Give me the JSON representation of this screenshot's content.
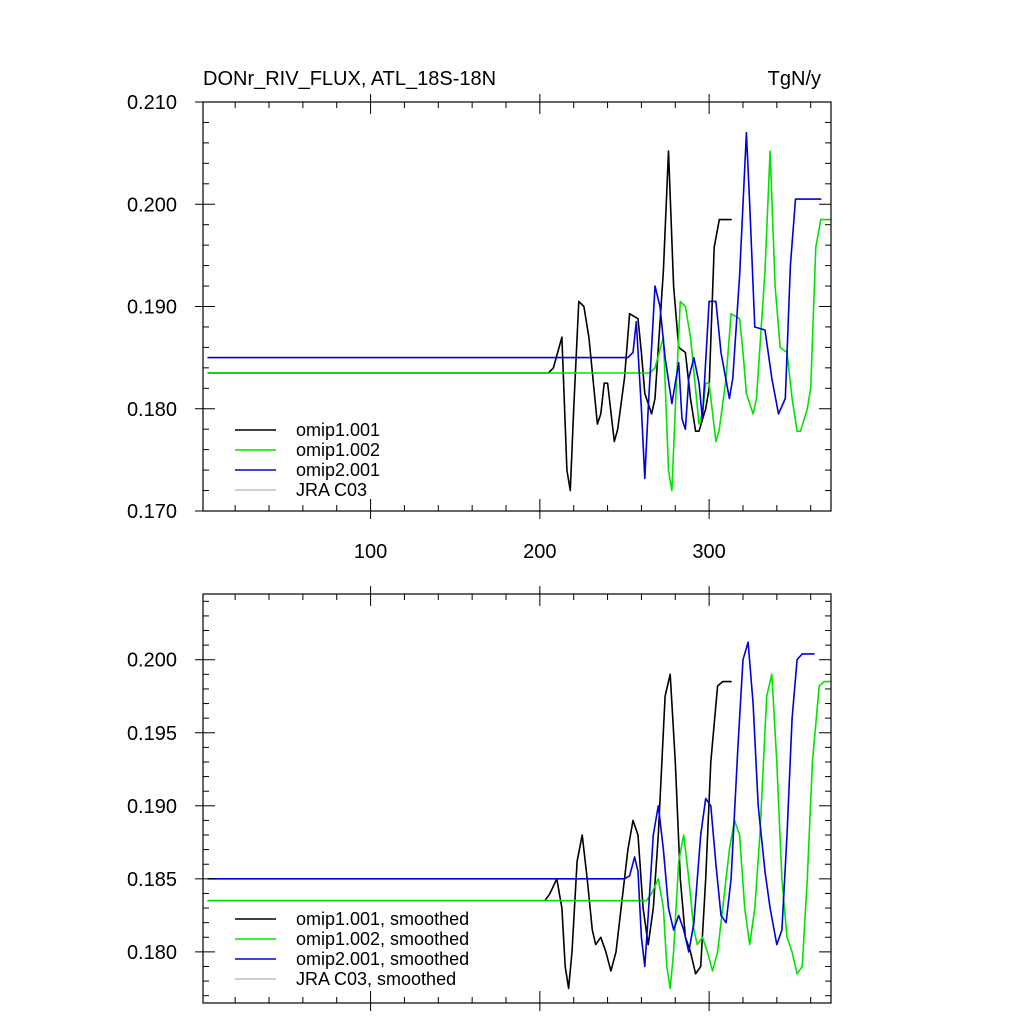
{
  "colors": {
    "omip1_001": "#000000",
    "omip1_002": "#00e400",
    "omip2_001": "#0000dd",
    "jra_c03": "#c0c0c0"
  },
  "chart_data": [
    {
      "type": "line",
      "title": "DONr_RIV_FLUX, ATL_18S-18N",
      "units": "TgN/y",
      "xlabel": "",
      "ylabel": "",
      "xlim": [
        1,
        372
      ],
      "ylim": [
        0.17,
        0.21
      ],
      "xticks": [
        100,
        200,
        300
      ],
      "xtick_labels": [
        "100",
        "200",
        "300"
      ],
      "yticks": [
        0.17,
        0.18,
        0.19,
        0.2,
        0.21
      ],
      "ytick_labels": [
        "0.170",
        "0.180",
        "0.190",
        "0.200",
        "0.210"
      ],
      "legend_position": "bottom-left",
      "series": [
        {
          "name": "omip1.001",
          "color": "#000000",
          "points": [
            [
              4,
              0.1835
            ],
            [
              205,
              0.1835
            ],
            [
              208,
              0.184
            ],
            [
              213,
              0.187
            ],
            [
              216,
              0.174
            ],
            [
              218,
              0.172
            ],
            [
              220,
              0.18
            ],
            [
              223,
              0.1905
            ],
            [
              226,
              0.19
            ],
            [
              229,
              0.187
            ],
            [
              234,
              0.1785
            ],
            [
              236,
              0.1795
            ],
            [
              238,
              0.1825
            ],
            [
              240,
              0.1825
            ],
            [
              244,
              0.1768
            ],
            [
              246,
              0.178
            ],
            [
              250,
              0.183
            ],
            [
              253,
              0.1893
            ],
            [
              258,
              0.1888
            ],
            [
              260,
              0.1855
            ],
            [
              262,
              0.1815
            ],
            [
              266,
              0.1795
            ],
            [
              268,
              0.181
            ],
            [
              273,
              0.1935
            ],
            [
              276,
              0.2052
            ],
            [
              279,
              0.192
            ],
            [
              282,
              0.186
            ],
            [
              286,
              0.1855
            ],
            [
              289,
              0.181
            ],
            [
              292,
              0.1778
            ],
            [
              294,
              0.1778
            ],
            [
              298,
              0.18
            ],
            [
              300,
              0.182
            ],
            [
              303,
              0.1958
            ],
            [
              306,
              0.1985
            ],
            [
              313,
              0.1985
            ]
          ]
        },
        {
          "name": "omip1.002",
          "color": "#00e400",
          "points": [
            [
              4,
              0.1835
            ],
            [
              265,
              0.1835
            ],
            [
              268,
              0.184
            ],
            [
              273,
              0.187
            ],
            [
              276,
              0.174
            ],
            [
              278,
              0.172
            ],
            [
              280,
              0.18
            ],
            [
              283,
              0.1905
            ],
            [
              286,
              0.19
            ],
            [
              289,
              0.187
            ],
            [
              294,
              0.1785
            ],
            [
              296,
              0.1795
            ],
            [
              298,
              0.1825
            ],
            [
              300,
              0.1825
            ],
            [
              304,
              0.1768
            ],
            [
              306,
              0.178
            ],
            [
              310,
              0.183
            ],
            [
              313,
              0.1893
            ],
            [
              318,
              0.1888
            ],
            [
              320,
              0.1855
            ],
            [
              322,
              0.1815
            ],
            [
              326,
              0.1795
            ],
            [
              328,
              0.181
            ],
            [
              333,
              0.1935
            ],
            [
              336,
              0.2052
            ],
            [
              339,
              0.192
            ],
            [
              342,
              0.186
            ],
            [
              346,
              0.1855
            ],
            [
              349,
              0.181
            ],
            [
              352,
              0.1778
            ],
            [
              354,
              0.1778
            ],
            [
              358,
              0.18
            ],
            [
              360,
              0.182
            ],
            [
              363,
              0.1958
            ],
            [
              366,
              0.1985
            ],
            [
              373,
              0.1985
            ]
          ]
        },
        {
          "name": "omip2.001",
          "color": "#0000dd",
          "points": [
            [
              4,
              0.185
            ],
            [
              252,
              0.185
            ],
            [
              255,
              0.1855
            ],
            [
              257,
              0.1885
            ],
            [
              260,
              0.18
            ],
            [
              262,
              0.1732
            ],
            [
              264,
              0.18
            ],
            [
              268,
              0.192
            ],
            [
              271,
              0.19
            ],
            [
              274,
              0.185
            ],
            [
              278,
              0.1805
            ],
            [
              282,
              0.1845
            ],
            [
              284,
              0.179
            ],
            [
              286,
              0.178
            ],
            [
              288,
              0.183
            ],
            [
              291,
              0.185
            ],
            [
              294,
              0.1825
            ],
            [
              296,
              0.179
            ],
            [
              300,
              0.1905
            ],
            [
              304,
              0.1905
            ],
            [
              307,
              0.1855
            ],
            [
              312,
              0.181
            ],
            [
              314,
              0.183
            ],
            [
              318,
              0.193
            ],
            [
              322,
              0.207
            ],
            [
              324,
              0.2
            ],
            [
              327,
              0.188
            ],
            [
              333,
              0.1877
            ],
            [
              337,
              0.183
            ],
            [
              341,
              0.1795
            ],
            [
              345,
              0.181
            ],
            [
              348,
              0.194
            ],
            [
              351,
              0.2005
            ],
            [
              366,
              0.2005
            ]
          ]
        },
        {
          "name": "JRA C03",
          "color": "#c0c0c0",
          "points": []
        }
      ]
    },
    {
      "type": "line",
      "title": "",
      "xlabel": "",
      "ylabel": "",
      "xlim": [
        1,
        372
      ],
      "ylim": [
        0.1765,
        0.2045
      ],
      "xticks": [
        100,
        200,
        300
      ],
      "xtick_labels": [],
      "yticks": [
        0.18,
        0.185,
        0.19,
        0.195,
        0.2
      ],
      "ytick_labels": [
        "0.180",
        "0.185",
        "0.190",
        "0.195",
        "0.200"
      ],
      "legend_position": "bottom-left",
      "series": [
        {
          "name": "omip1.001, smoothed",
          "color": "#000000",
          "points": [
            [
              4,
              0.1835
            ],
            [
              203,
              0.1835
            ],
            [
              206,
              0.184
            ],
            [
              210,
              0.185
            ],
            [
              213,
              0.183
            ],
            [
              215,
              0.179
            ],
            [
              217,
              0.1775
            ],
            [
              219,
              0.18
            ],
            [
              222,
              0.1862
            ],
            [
              225,
              0.188
            ],
            [
              228,
              0.185
            ],
            [
              231,
              0.1815
            ],
            [
              233,
              0.1805
            ],
            [
              236,
              0.181
            ],
            [
              239,
              0.18
            ],
            [
              242,
              0.1787
            ],
            [
              245,
              0.18
            ],
            [
              248,
              0.183
            ],
            [
              252,
              0.187
            ],
            [
              255,
              0.189
            ],
            [
              258,
              0.188
            ],
            [
              261,
              0.183
            ],
            [
              264,
              0.1805
            ],
            [
              267,
              0.183
            ],
            [
              270,
              0.188
            ],
            [
              274,
              0.1975
            ],
            [
              277,
              0.199
            ],
            [
              280,
              0.193
            ],
            [
              283,
              0.185
            ],
            [
              286,
              0.181
            ],
            [
              289,
              0.18
            ],
            [
              292,
              0.1785
            ],
            [
              295,
              0.179
            ],
            [
              298,
              0.185
            ],
            [
              301,
              0.193
            ],
            [
              305,
              0.1982
            ],
            [
              308,
              0.1985
            ],
            [
              313,
              0.1985
            ]
          ]
        },
        {
          "name": "omip1.002, smoothed",
          "color": "#00e400",
          "points": [
            [
              4,
              0.1835
            ],
            [
              263,
              0.1835
            ],
            [
              266,
              0.184
            ],
            [
              270,
              0.185
            ],
            [
              273,
              0.183
            ],
            [
              275,
              0.179
            ],
            [
              277,
              0.1775
            ],
            [
              279,
              0.18
            ],
            [
              282,
              0.1862
            ],
            [
              285,
              0.188
            ],
            [
              288,
              0.185
            ],
            [
              291,
              0.1815
            ],
            [
              293,
              0.1805
            ],
            [
              296,
              0.181
            ],
            [
              299,
              0.18
            ],
            [
              302,
              0.1787
            ],
            [
              305,
              0.18
            ],
            [
              308,
              0.183
            ],
            [
              312,
              0.187
            ],
            [
              315,
              0.189
            ],
            [
              318,
              0.188
            ],
            [
              321,
              0.183
            ],
            [
              324,
              0.1805
            ],
            [
              327,
              0.183
            ],
            [
              330,
              0.188
            ],
            [
              334,
              0.1975
            ],
            [
              337,
              0.199
            ],
            [
              340,
              0.193
            ],
            [
              343,
              0.185
            ],
            [
              346,
              0.181
            ],
            [
              349,
              0.18
            ],
            [
              352,
              0.1785
            ],
            [
              355,
              0.179
            ],
            [
              358,
              0.185
            ],
            [
              361,
              0.193
            ],
            [
              365,
              0.1982
            ],
            [
              368,
              0.1985
            ],
            [
              373,
              0.1985
            ]
          ]
        },
        {
          "name": "omip2.001, smoothed",
          "color": "#0000dd",
          "points": [
            [
              4,
              0.185
            ],
            [
              250,
              0.185
            ],
            [
              253,
              0.1852
            ],
            [
              256,
              0.1865
            ],
            [
              258,
              0.1855
            ],
            [
              260,
              0.181
            ],
            [
              262,
              0.179
            ],
            [
              264,
              0.1825
            ],
            [
              267,
              0.188
            ],
            [
              270,
              0.19
            ],
            [
              273,
              0.187
            ],
            [
              276,
              0.183
            ],
            [
              279,
              0.1815
            ],
            [
              282,
              0.1825
            ],
            [
              285,
              0.1815
            ],
            [
              288,
              0.18
            ],
            [
              291,
              0.182
            ],
            [
              295,
              0.188
            ],
            [
              298,
              0.1905
            ],
            [
              301,
              0.19
            ],
            [
              304,
              0.186
            ],
            [
              307,
              0.1825
            ],
            [
              310,
              0.182
            ],
            [
              313,
              0.185
            ],
            [
              317,
              0.194
            ],
            [
              320,
              0.2
            ],
            [
              323,
              0.2012
            ],
            [
              326,
              0.197
            ],
            [
              329,
              0.19
            ],
            [
              333,
              0.1855
            ],
            [
              336,
              0.183
            ],
            [
              340,
              0.1805
            ],
            [
              343,
              0.1815
            ],
            [
              346,
              0.188
            ],
            [
              349,
              0.196
            ],
            [
              352,
              0.2
            ],
            [
              355,
              0.2004
            ],
            [
              362,
              0.2004
            ]
          ]
        },
        {
          "name": "JRA C03, smoothed",
          "color": "#c0c0c0",
          "points": []
        }
      ]
    }
  ]
}
